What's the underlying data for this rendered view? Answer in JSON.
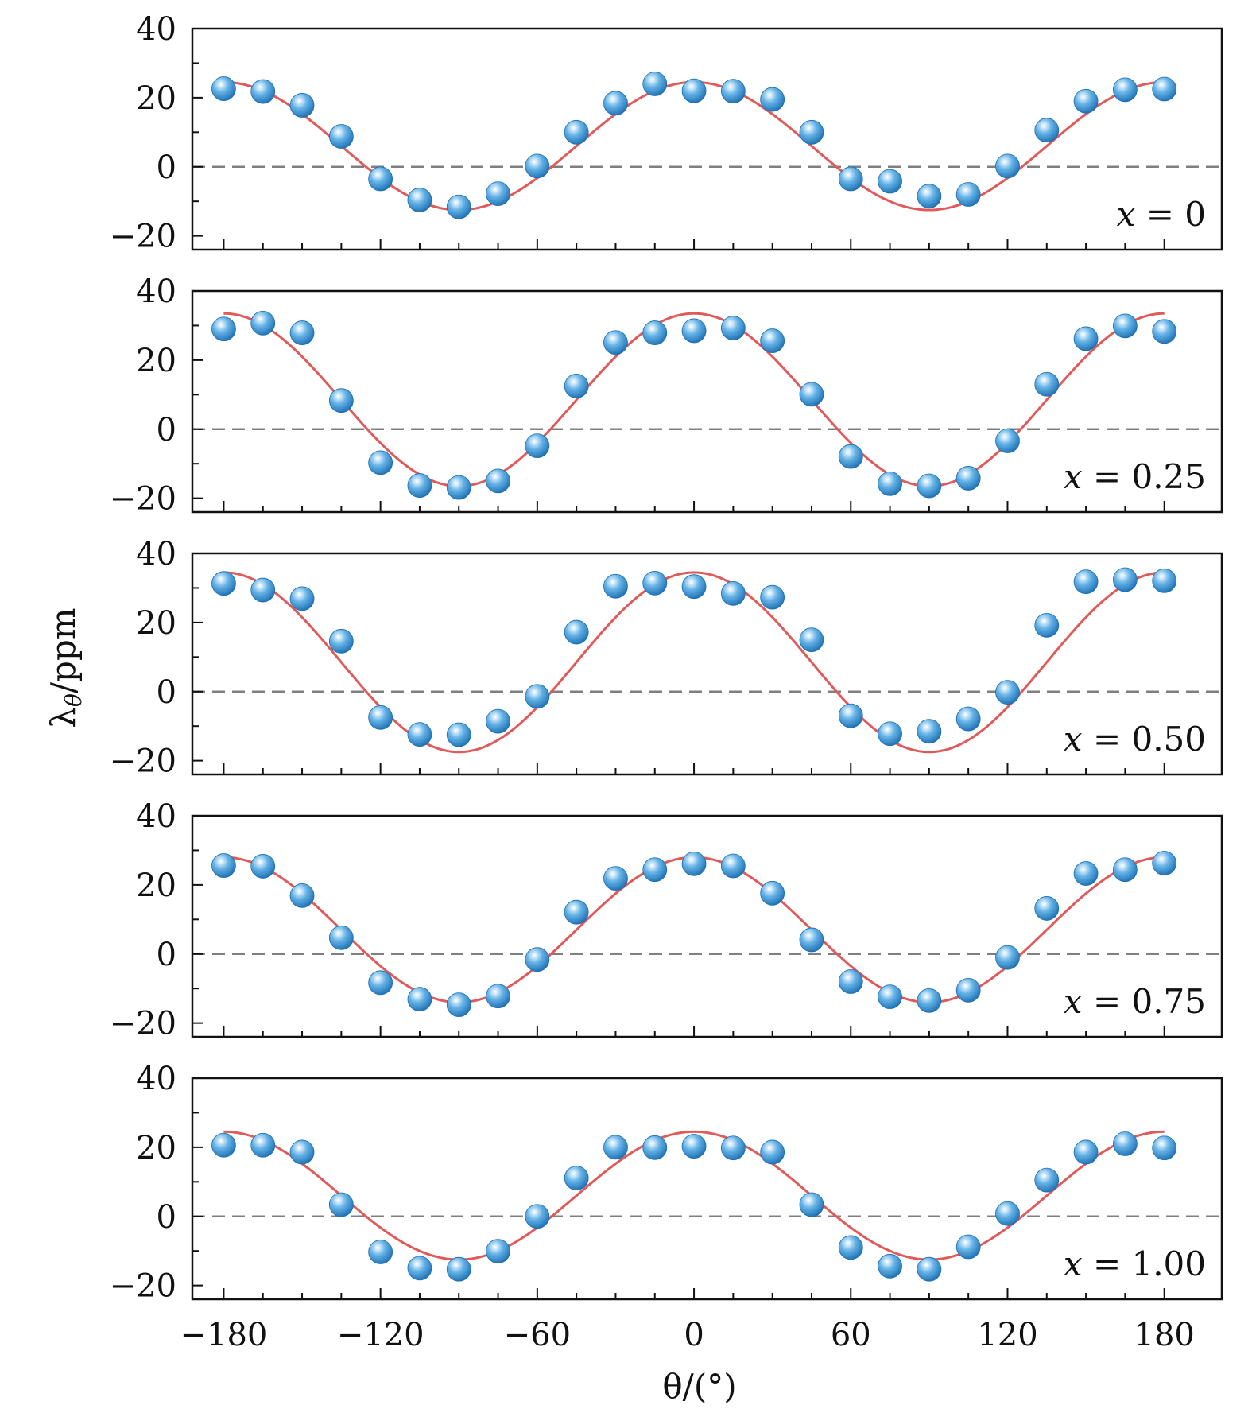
{
  "chart_data": {
    "type": "scatter",
    "title": "",
    "xlabel": "θ/(°)",
    "ylabel": "λθ/ppm",
    "ylabel_main": "λ",
    "ylabel_sub": "θ",
    "ylabel_rest": "/ppm",
    "xlim": [
      -192,
      202
    ],
    "ylim": [
      -24,
      40
    ],
    "x_ticks": [
      -180,
      -120,
      -60,
      0,
      60,
      120,
      180
    ],
    "x_tick_labels": [
      "−180",
      "−120",
      "−60",
      "0",
      "60",
      "120",
      "180"
    ],
    "y_ticks": [
      -20,
      0,
      20,
      40
    ],
    "y_tick_labels": [
      "−20",
      "0",
      "20",
      "40"
    ],
    "x": [
      -180,
      -165,
      -150,
      -135,
      -120,
      -105,
      -90,
      -75,
      -60,
      -45,
      -30,
      -15,
      0,
      15,
      30,
      45,
      60,
      75,
      90,
      105,
      120,
      135,
      150,
      165,
      180
    ],
    "reference_line": {
      "y": 0,
      "style": "dashed",
      "color": "#7f7f7f"
    },
    "colors": {
      "marker": "#4a9edb",
      "marker_dark": "#1d6fb2",
      "fit": "#e05a5a",
      "frame": "#111111"
    },
    "panels": [
      {
        "label": "x = 0",
        "label_var": "x",
        "label_eq": "=",
        "label_value": "0",
        "fit": {
          "amplitude": 18.5,
          "offset": 6.0
        },
        "values": [
          22.6,
          21.8,
          17.8,
          8.8,
          -3.5,
          -9.6,
          -11.6,
          -7.8,
          0.2,
          10.0,
          18.4,
          24.0,
          22.0,
          21.9,
          19.5,
          10.0,
          -3.5,
          -4.2,
          -8.5,
          -8.0,
          0.2,
          10.6,
          19.0,
          22.3,
          22.5
        ]
      },
      {
        "label": "x = 0.25",
        "label_var": "x",
        "label_eq": "=",
        "label_value": "0.25",
        "fit": {
          "amplitude": 25.0,
          "offset": 8.5
        },
        "values": [
          29.0,
          30.7,
          27.9,
          8.3,
          -9.7,
          -16.3,
          -16.9,
          -15.0,
          -4.8,
          12.5,
          25.1,
          27.9,
          28.5,
          29.3,
          25.6,
          10.1,
          -7.9,
          -15.8,
          -16.4,
          -14.2,
          -3.4,
          13.0,
          26.2,
          29.9,
          28.3
        ]
      },
      {
        "label": "x = 0.50",
        "label_var": "x",
        "label_eq": "=",
        "label_value": "0.50",
        "fit": {
          "amplitude": 26.0,
          "offset": 8.5
        },
        "values": [
          31.3,
          29.4,
          26.9,
          14.6,
          -7.5,
          -12.4,
          -12.5,
          -8.6,
          -1.4,
          17.2,
          30.5,
          31.4,
          30.4,
          28.4,
          27.3,
          15.0,
          -7.0,
          -12.2,
          -11.5,
          -7.9,
          -0.2,
          19.2,
          31.8,
          32.4,
          32.1
        ]
      },
      {
        "label": "x = 0.75",
        "label_var": "x",
        "label_eq": "=",
        "label_value": "0.75",
        "fit": {
          "amplitude": 21.0,
          "offset": 7.0
        },
        "values": [
          25.6,
          25.4,
          16.9,
          4.7,
          -8.3,
          -13.1,
          -14.7,
          -12.2,
          -1.6,
          12.1,
          21.9,
          24.4,
          26.1,
          25.5,
          17.6,
          4.1,
          -8.0,
          -12.4,
          -13.5,
          -10.5,
          -1.0,
          13.2,
          23.3,
          24.4,
          26.3
        ]
      },
      {
        "label": "x = 1.00",
        "label_var": "x",
        "label_eq": "=",
        "label_value": "1.00",
        "fit": {
          "amplitude": 18.5,
          "offset": 6.0
        },
        "values": [
          20.6,
          20.6,
          18.6,
          3.4,
          -10.3,
          -15.0,
          -15.3,
          -10.1,
          0.0,
          11.1,
          20.0,
          19.9,
          20.3,
          19.8,
          18.6,
          3.4,
          -9.0,
          -14.4,
          -15.3,
          -8.8,
          0.8,
          10.5,
          18.6,
          21.0,
          19.8
        ]
      }
    ]
  }
}
